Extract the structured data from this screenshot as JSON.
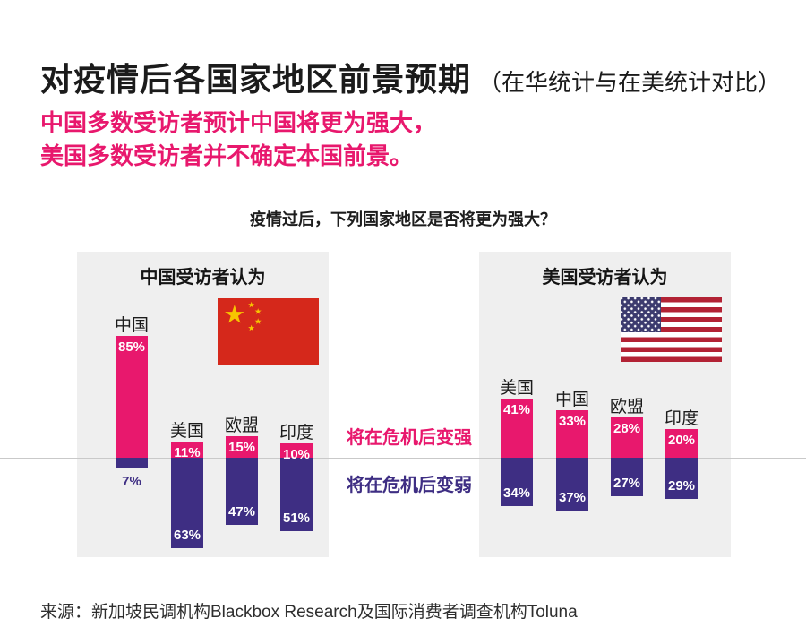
{
  "page": {
    "title": "对疫情后各国家地区前景预期",
    "title_suffix": "（在华统计与在美统计对比）",
    "subtitle_line1": "中国多数受访者预计中国将更为强大，",
    "subtitle_line2": "美国多数受访者并不确定本国前景。",
    "question": "疫情过后，下列国家地区是否将更为强大？",
    "source": "来源：新加坡民调机构Blackbox Research及国际消费者调查机构Toluna"
  },
  "legend": {
    "stronger": "将在危机后变强",
    "weaker": "将在危机后变弱"
  },
  "colors": {
    "pink": "#e8186d",
    "purple": "#3e2e83",
    "panel_bg": "#efefef",
    "baseline": "#c9c9c9",
    "china_flag_red": "#d5281b",
    "china_flag_star": "#f7c500",
    "us_flag_red": "#b22234",
    "us_flag_navy": "#3c3b6e"
  },
  "chart_data": {
    "type": "bar",
    "title": "疫情过后，下列国家地区是否将更为强大？",
    "unit": "%",
    "legend": [
      "将在危机后变强",
      "将在危机后变弱"
    ],
    "legend_position": "center-between-panels",
    "grid": false,
    "panels": [
      {
        "title": "中国受访者认为",
        "flag": "china-flag",
        "categories": [
          "中国",
          "美国",
          "欧盟",
          "印度"
        ],
        "series": [
          {
            "name": "将在危机后变强",
            "values": [
              85,
              11,
              15,
              10
            ]
          },
          {
            "name": "将在危机后变弱",
            "values": [
              7,
              63,
              47,
              51
            ]
          }
        ]
      },
      {
        "title": "美国受访者认为",
        "flag": "us-flag",
        "categories": [
          "美国",
          "中国",
          "欧盟",
          "印度"
        ],
        "series": [
          {
            "name": "将在危机后变强",
            "values": [
              41,
              33,
              28,
              20
            ]
          },
          {
            "name": "将在危机后变弱",
            "values": [
              34,
              37,
              27,
              29
            ]
          }
        ]
      }
    ]
  }
}
